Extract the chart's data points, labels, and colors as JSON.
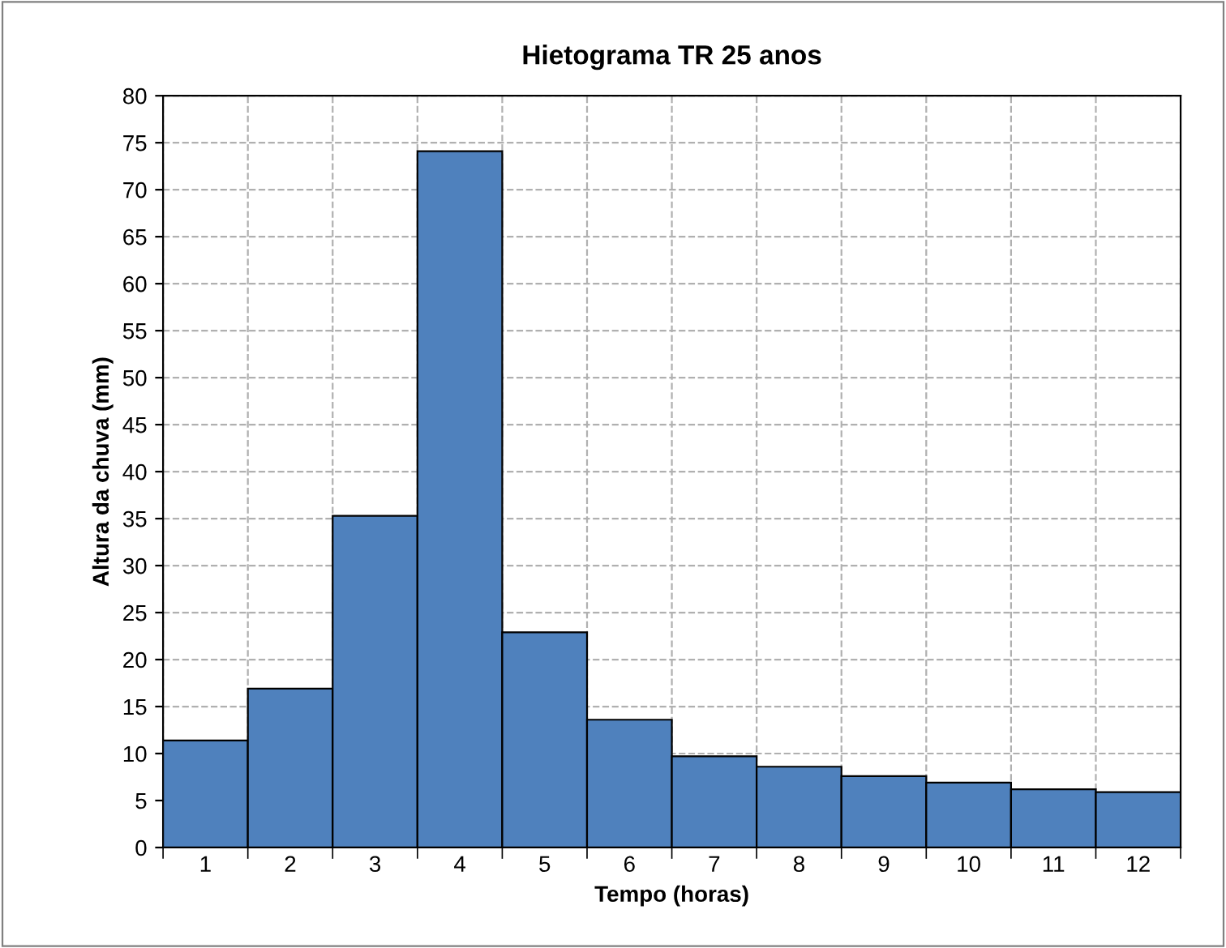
{
  "chart_data": {
    "type": "bar",
    "title": "Hietograma TR 25 anos",
    "xlabel": "Tempo (horas)",
    "ylabel": "Altura da chuva (mm)",
    "categories": [
      "1",
      "2",
      "3",
      "4",
      "5",
      "6",
      "7",
      "8",
      "9",
      "10",
      "11",
      "12"
    ],
    "values": [
      11.4,
      16.9,
      35.3,
      74.1,
      22.9,
      13.6,
      9.7,
      8.6,
      7.6,
      6.9,
      6.2,
      5.9
    ],
    "color": "#4f81bd",
    "ylim": [
      0,
      80
    ],
    "yticks": [
      0,
      5,
      10,
      15,
      20,
      25,
      30,
      35,
      40,
      45,
      50,
      55,
      60,
      65,
      70,
      75,
      80
    ],
    "grid": true
  }
}
